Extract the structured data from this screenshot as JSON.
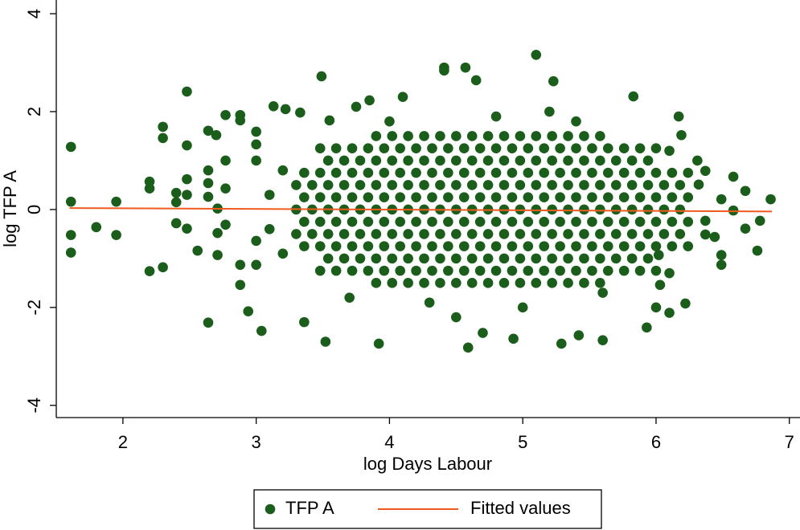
{
  "chart_data": {
    "type": "scatter",
    "xlabel": "log Days Labour",
    "ylabel": "log TFP A",
    "xlim": [
      1.5,
      7.08
    ],
    "ylim": [
      -4.25,
      4.28
    ],
    "xticks": [
      2,
      3,
      4,
      5,
      6,
      7
    ],
    "yticks": [
      -4,
      -2,
      0,
      2,
      4
    ],
    "grid": false,
    "legend": "bottom",
    "series": [
      {
        "name": "TFP A",
        "type": "scatter",
        "color": "#1b5e1b",
        "x": [
          1.61,
          1.61,
          1.61,
          1.61,
          1.8,
          1.95,
          1.95,
          2.2,
          2.2,
          2.2,
          2.3,
          2.3,
          2.3,
          2.4,
          2.4,
          2.4,
          2.48,
          2.48,
          2.48,
          2.48,
          2.48,
          2.56,
          2.64,
          2.64,
          2.7,
          2.64,
          2.64,
          2.64,
          2.71,
          2.71,
          2.71,
          2.77,
          2.77,
          2.77,
          2.77,
          2.88,
          2.88,
          2.88,
          2.88,
          2.94,
          3.0,
          3.0,
          3.0,
          3.0,
          3.0,
          3.04,
          3.13,
          3.22,
          3.33,
          3.36,
          3.49,
          3.52,
          3.55,
          3.92,
          3.75,
          3.85,
          4.1,
          4.41,
          4.41,
          4.57,
          4.65,
          4.59,
          4.7,
          4.93,
          5.1,
          5.23,
          5.29,
          5.42,
          5.6,
          5.83,
          5.93,
          6.1,
          6.0,
          6.22,
          6.17,
          6.19,
          6.31,
          6.37,
          6.32,
          6.37,
          6.37,
          6.44,
          6.49,
          6.49,
          6.49,
          6.58,
          6.67,
          6.58,
          6.67,
          6.76,
          6.86,
          6.78,
          6.02,
          6.03,
          3.1,
          3.1,
          3.2,
          3.2,
          4.0,
          4.3,
          4.8,
          5.0,
          5.4,
          5.6,
          4.5,
          5.2,
          3.7,
          6.1,
          6.1,
          3.3,
          3.42,
          3.54,
          3.66,
          3.78,
          3.9,
          4.02,
          4.14,
          4.26,
          4.38,
          4.5,
          4.62,
          4.74,
          4.86,
          4.98,
          5.1,
          5.22,
          5.34,
          5.46,
          5.58,
          5.7,
          5.82,
          5.94,
          6.06,
          6.18,
          3.36,
          3.48,
          3.6,
          3.72,
          3.84,
          3.96,
          4.08,
          4.2,
          4.32,
          4.44,
          4.56,
          4.68,
          4.8,
          4.92,
          5.04,
          5.16,
          5.28,
          5.4,
          5.52,
          5.64,
          5.76,
          5.88,
          6.0,
          6.12,
          6.24,
          3.36,
          3.48,
          3.6,
          3.72,
          3.84,
          3.96,
          4.08,
          4.2,
          4.32,
          4.44,
          4.56,
          4.68,
          4.8,
          4.92,
          5.04,
          5.16,
          5.28,
          5.4,
          5.52,
          5.64,
          5.76,
          5.88,
          6.0,
          6.12,
          6.24,
          3.3,
          3.42,
          3.54,
          3.66,
          3.78,
          3.9,
          4.02,
          4.14,
          4.26,
          4.38,
          4.5,
          4.62,
          4.74,
          4.86,
          4.98,
          5.1,
          5.22,
          5.34,
          5.46,
          5.58,
          5.7,
          5.82,
          5.94,
          6.06,
          6.18,
          3.3,
          3.42,
          3.54,
          3.66,
          3.78,
          3.9,
          4.02,
          4.14,
          4.26,
          4.38,
          4.5,
          4.62,
          4.74,
          4.86,
          4.98,
          5.1,
          5.22,
          5.34,
          5.46,
          5.58,
          5.7,
          5.82,
          5.94,
          6.06,
          6.18,
          3.36,
          3.48,
          3.6,
          3.72,
          3.84,
          3.96,
          4.08,
          4.2,
          4.32,
          4.44,
          4.56,
          4.68,
          4.8,
          4.92,
          5.04,
          5.16,
          5.28,
          5.4,
          5.52,
          5.64,
          5.76,
          5.88,
          6.0,
          6.12,
          6.24,
          3.36,
          3.48,
          3.6,
          3.72,
          3.84,
          3.96,
          4.08,
          4.2,
          4.32,
          4.44,
          4.56,
          4.68,
          4.8,
          4.92,
          5.04,
          5.16,
          5.28,
          5.4,
          5.52,
          5.64,
          5.76,
          5.88,
          6.0,
          6.12,
          6.24,
          3.54,
          3.66,
          3.78,
          3.9,
          4.02,
          4.14,
          4.26,
          4.38,
          4.5,
          4.62,
          4.74,
          4.86,
          4.98,
          5.1,
          5.22,
          5.34,
          5.46,
          5.58,
          5.7,
          5.82,
          5.94,
          3.54,
          3.66,
          3.78,
          3.9,
          4.02,
          4.14,
          4.26,
          4.38,
          4.5,
          4.62,
          4.74,
          4.86,
          4.98,
          5.1,
          5.22,
          5.34,
          5.46,
          5.58,
          5.7,
          5.82,
          5.94,
          3.48,
          3.6,
          3.72,
          3.84,
          3.96,
          4.08,
          4.2,
          4.32,
          4.44,
          4.56,
          4.68,
          4.8,
          4.92,
          5.04,
          5.16,
          5.28,
          5.4,
          5.52,
          5.64,
          5.76,
          5.88,
          6.0,
          3.48,
          3.6,
          3.72,
          3.84,
          3.96,
          4.08,
          4.2,
          4.32,
          4.44,
          4.56,
          4.68,
          4.8,
          4.92,
          5.04,
          5.16,
          5.28,
          5.4,
          5.52,
          5.64,
          5.76,
          5.88,
          6.0,
          3.9,
          4.02,
          4.14,
          4.26,
          4.38,
          4.5,
          4.62,
          4.74,
          4.86,
          4.98,
          5.1,
          5.22,
          5.34,
          5.46,
          5.58,
          3.9,
          4.02,
          4.14,
          4.26,
          4.38,
          4.5,
          4.62,
          4.74,
          4.86,
          4.98,
          5.1,
          5.22,
          5.34,
          5.46,
          5.58
        ],
        "values": [
          1.28,
          0.16,
          -0.52,
          -0.88,
          -0.36,
          0.16,
          -0.52,
          0.57,
          0.43,
          -1.26,
          -1.18,
          1.69,
          1.46,
          0.34,
          0.15,
          -0.28,
          2.41,
          1.31,
          0.62,
          0.3,
          -0.39,
          -0.84,
          -2.31,
          1.61,
          1.52,
          0.8,
          0.54,
          0.26,
          0.02,
          -0.48,
          -0.93,
          1.93,
          1.0,
          0.43,
          -0.31,
          1.93,
          1.82,
          -1.54,
          -1.13,
          -2.08,
          1.59,
          1.33,
          1.0,
          -0.64,
          -1.13,
          -2.48,
          2.11,
          2.05,
          1.98,
          -2.3,
          2.72,
          -2.7,
          1.82,
          -2.74,
          2.1,
          2.23,
          2.3,
          2.9,
          2.84,
          2.9,
          2.64,
          -2.82,
          -2.52,
          -2.64,
          3.16,
          2.62,
          -2.74,
          -2.57,
          -2.67,
          2.31,
          -2.41,
          -2.11,
          -2.0,
          -1.92,
          1.9,
          1.52,
          1.0,
          0.79,
          0.51,
          -0.23,
          -0.51,
          -0.56,
          0.21,
          -0.93,
          -1.13,
          0.67,
          0.38,
          -0.02,
          -0.39,
          -0.84,
          0.21,
          -0.23,
          -0.93,
          -1.54,
          0.3,
          -0.4,
          0.8,
          -0.9,
          1.8,
          -1.9,
          1.9,
          -2.0,
          1.8,
          -1.7,
          -2.2,
          2.0,
          -1.8,
          1.2,
          -1.3,
          0,
          0,
          0,
          0,
          0,
          0,
          0,
          0,
          0,
          0,
          0,
          0,
          0,
          0,
          0,
          0,
          0,
          0,
          0,
          0,
          0,
          0,
          0,
          0,
          0,
          0.25,
          0.25,
          0.25,
          0.25,
          0.25,
          0.25,
          0.25,
          0.25,
          0.25,
          0.25,
          0.25,
          0.25,
          0.25,
          0.25,
          0.25,
          0.25,
          0.25,
          0.25,
          0.25,
          0.25,
          0.25,
          0.25,
          0.25,
          0.25,
          0.25,
          -0.25,
          -0.25,
          -0.25,
          -0.25,
          -0.25,
          -0.25,
          -0.25,
          -0.25,
          -0.25,
          -0.25,
          -0.25,
          -0.25,
          -0.25,
          -0.25,
          -0.25,
          -0.25,
          -0.25,
          -0.25,
          -0.25,
          -0.25,
          -0.25,
          -0.25,
          -0.25,
          -0.25,
          -0.25,
          0.5,
          0.5,
          0.5,
          0.5,
          0.5,
          0.5,
          0.5,
          0.5,
          0.5,
          0.5,
          0.5,
          0.5,
          0.5,
          0.5,
          0.5,
          0.5,
          0.5,
          0.5,
          0.5,
          0.5,
          0.5,
          0.5,
          0.5,
          0.5,
          0.5,
          -0.5,
          -0.5,
          -0.5,
          -0.5,
          -0.5,
          -0.5,
          -0.5,
          -0.5,
          -0.5,
          -0.5,
          -0.5,
          -0.5,
          -0.5,
          -0.5,
          -0.5,
          -0.5,
          -0.5,
          -0.5,
          -0.5,
          -0.5,
          -0.5,
          -0.5,
          -0.5,
          -0.5,
          -0.5,
          0.75,
          0.75,
          0.75,
          0.75,
          0.75,
          0.75,
          0.75,
          0.75,
          0.75,
          0.75,
          0.75,
          0.75,
          0.75,
          0.75,
          0.75,
          0.75,
          0.75,
          0.75,
          0.75,
          0.75,
          0.75,
          0.75,
          0.75,
          0.75,
          0.75,
          -0.75,
          -0.75,
          -0.75,
          -0.75,
          -0.75,
          -0.75,
          -0.75,
          -0.75,
          -0.75,
          -0.75,
          -0.75,
          -0.75,
          -0.75,
          -0.75,
          -0.75,
          -0.75,
          -0.75,
          -0.75,
          -0.75,
          -0.75,
          -0.75,
          -0.75,
          -0.75,
          -0.75,
          -0.75,
          1,
          1,
          1,
          1,
          1,
          1,
          1,
          1,
          1,
          1,
          1,
          1,
          1,
          1,
          1,
          1,
          1,
          1,
          1,
          1,
          1,
          -1,
          -1,
          -1,
          -1,
          -1,
          -1,
          -1,
          -1,
          -1,
          -1,
          -1,
          -1,
          -1,
          -1,
          -1,
          -1,
          -1,
          -1,
          -1,
          -1,
          -1,
          1.25,
          1.25,
          1.25,
          1.25,
          1.25,
          1.25,
          1.25,
          1.25,
          1.25,
          1.25,
          1.25,
          1.25,
          1.25,
          1.25,
          1.25,
          1.25,
          1.25,
          1.25,
          1.25,
          1.25,
          1.25,
          1.25,
          -1.25,
          -1.25,
          -1.25,
          -1.25,
          -1.25,
          -1.25,
          -1.25,
          -1.25,
          -1.25,
          -1.25,
          -1.25,
          -1.25,
          -1.25,
          -1.25,
          -1.25,
          -1.25,
          -1.25,
          -1.25,
          -1.25,
          -1.25,
          -1.25,
          -1.25,
          1.5,
          1.5,
          1.5,
          1.5,
          1.5,
          1.5,
          1.5,
          1.5,
          1.5,
          1.5,
          1.5,
          1.5,
          1.5,
          1.5,
          1.5,
          -1.5,
          -1.5,
          -1.5,
          -1.5,
          -1.5,
          -1.5,
          -1.5,
          -1.5,
          -1.5,
          -1.5,
          -1.5,
          -1.5,
          -1.5,
          -1.5,
          -1.5
        ]
      },
      {
        "name": "Fitted values",
        "type": "line",
        "color": "#f05a1e",
        "x": [
          1.6,
          6.87
        ],
        "values": [
          0.03,
          -0.04
        ]
      }
    ]
  }
}
